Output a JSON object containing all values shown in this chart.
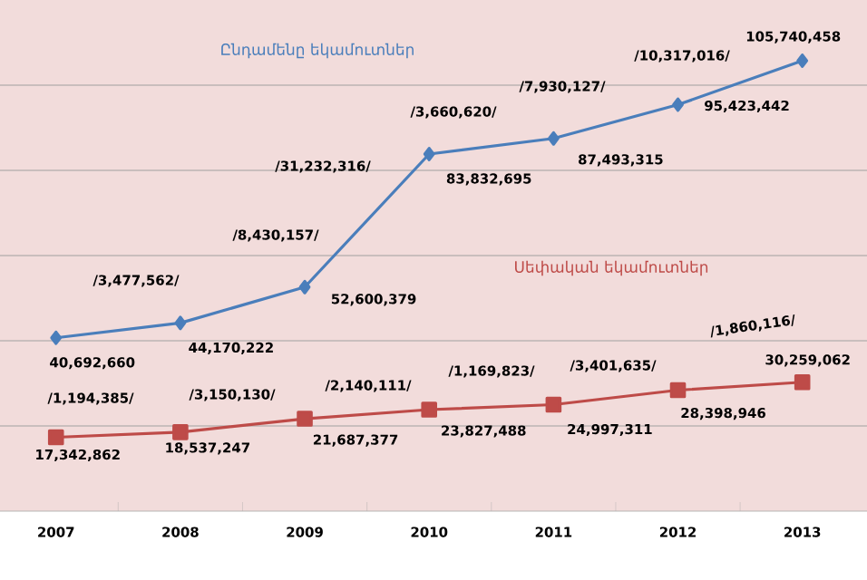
{
  "chart_data": {
    "type": "line",
    "categories": [
      "2007",
      "2008",
      "2009",
      "2010",
      "2011",
      "2012",
      "2013"
    ],
    "series": [
      {
        "name": "Ընդամենը եկամուտներ",
        "color": "#4a7ebb",
        "marker": "diamond",
        "values": [
          40692660,
          44170222,
          52600379,
          83832695,
          87493315,
          95423442,
          105740458
        ],
        "value_labels": [
          "40,692,660",
          "44,170,222",
          "52,600,379",
          "83,832,695",
          "87,493,315",
          "95,423,442",
          "105,740,458"
        ]
      },
      {
        "name": "Սեփական եկամուտներ",
        "color": "#be4b48",
        "marker": "square",
        "values": [
          17342862,
          18537247,
          21687377,
          23827488,
          24997311,
          28398946,
          30259062
        ],
        "value_labels": [
          "17,342,862",
          "18,537,247",
          "21,687,377",
          "23,827,488",
          "24,997,311",
          "28,398,946",
          "30,259,062"
        ]
      }
    ],
    "ylim": [
      0,
      120000000
    ],
    "yticks": [
      {
        "value": 20000000,
        "label": null
      },
      {
        "value": 40000000,
        "label": null
      },
      {
        "value": 60000000,
        "label": null
      },
      {
        "value": 80000000,
        "label": null
      },
      {
        "value": 100000000,
        "label": null
      }
    ],
    "tick_labels": "x",
    "grid": "y",
    "annotations": [
      "/3,477,562/",
      "/8,430,157/",
      "/31,232,316/",
      "/3,660,620/",
      "/7,930,127/",
      "/10,317,016/",
      "/1,194,385/",
      "/3,150,130/",
      "/2,140,111/",
      "/1,169,823/",
      "/3,401,635/",
      "/1,860,116/"
    ]
  }
}
